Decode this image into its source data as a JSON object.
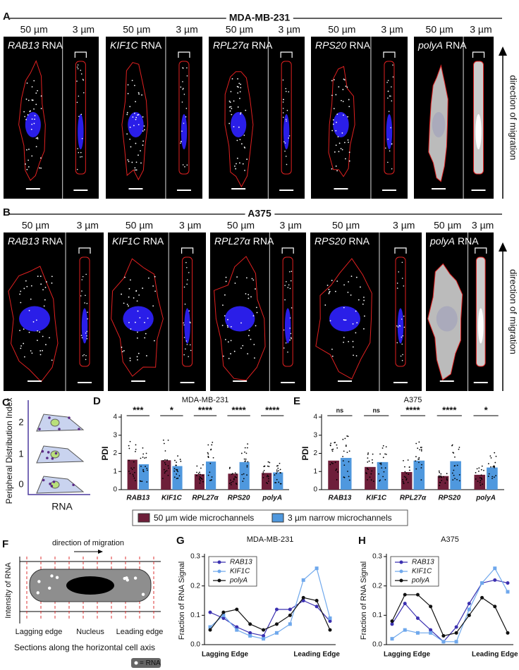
{
  "panel_a": {
    "letter": "A",
    "title": "MDA-MB-231",
    "direction": "direction of migration",
    "cells": [
      {
        "wide": "50 µm",
        "narrow": "3 µm",
        "gene": "RAB13",
        "rna": "RNA"
      },
      {
        "wide": "50 µm",
        "narrow": "3 µm",
        "gene": "KIF1C",
        "rna": "RNA"
      },
      {
        "wide": "50 µm",
        "narrow": "3 µm",
        "gene": "RPL27α",
        "rna": "RNA"
      },
      {
        "wide": "50 µm",
        "narrow": "3 µm",
        "gene": "RPS20",
        "rna": "RNA"
      },
      {
        "wide": "50 µm",
        "narrow": "3 µm",
        "gene": "polyA",
        "rna": "RNA"
      }
    ]
  },
  "panel_b": {
    "letter": "B",
    "title": "A375",
    "direction": "direction of migration",
    "cells": [
      {
        "wide": "50 µm",
        "narrow": "3 µm",
        "gene": "RAB13",
        "rna": "RNA"
      },
      {
        "wide": "50 µm",
        "narrow": "3 µm",
        "gene": "KIF1C",
        "rna": "RNA"
      },
      {
        "wide": "50 µm",
        "narrow": "3 µm",
        "gene": "RPL27α",
        "rna": "RNA"
      },
      {
        "wide": "50 µm",
        "narrow": "3 µm",
        "gene": "RPS20",
        "rna": "RNA"
      },
      {
        "wide": "50 µm",
        "narrow": "3 µm",
        "gene": "polyA",
        "rna": "RNA"
      }
    ]
  },
  "panel_c": {
    "letter": "C",
    "ylabel": "Peripheral Distribution Index",
    "xlabel": "RNA",
    "yticks": [
      0,
      1,
      2
    ]
  },
  "panel_f": {
    "letter": "F",
    "direction": "direction of migration",
    "ylabel": "Intensity of RNA",
    "labels": [
      "Lagging edge",
      "Nucleus",
      "Leading edge"
    ],
    "xlabel": "Sections along the horizontal cell axis",
    "key": "= RNA"
  },
  "chart_data": [
    {
      "type": "bar",
      "letter": "D",
      "title": "MDA-MB-231",
      "ylabel": "PDI",
      "categories": [
        "RAB13",
        "KIF1C",
        "RPL27α",
        "RPS20",
        "polyA"
      ],
      "series": [
        {
          "name": "50 µm wide microchannels",
          "color": "#6e1f3a",
          "values": [
            1.65,
            1.62,
            0.85,
            0.88,
            0.92
          ]
        },
        {
          "name": "3 µm narrow microchannels",
          "color": "#4f98de",
          "values": [
            1.4,
            1.3,
            1.55,
            1.52,
            0.95
          ]
        }
      ],
      "significance": [
        "***",
        "*",
        "****",
        "****",
        "****"
      ],
      "ylim": [
        0,
        4
      ],
      "yticks": [
        0,
        1,
        2,
        3,
        4
      ]
    },
    {
      "type": "bar",
      "letter": "E",
      "title": "A375",
      "ylabel": "PDI",
      "categories": [
        "RAB13",
        "KIF1C",
        "RPL27α",
        "RPS20",
        "polyA"
      ],
      "series": [
        {
          "color": "#6e1f3a",
          "values": [
            1.6,
            1.25,
            0.97,
            0.75,
            0.82
          ]
        },
        {
          "color": "#4f98de",
          "values": [
            1.75,
            1.52,
            1.6,
            1.57,
            1.22
          ]
        }
      ],
      "significance": [
        "ns",
        "ns",
        "****",
        "****",
        "*"
      ],
      "ylim": [
        0,
        4
      ],
      "yticks": [
        0,
        1,
        2,
        3,
        4
      ]
    },
    {
      "type": "line",
      "letter": "G",
      "title": "MDA-MB-231",
      "ylabel": "Fraction of RNA Signal",
      "categories": [
        "Lagging Edge",
        null,
        null,
        null,
        null,
        null,
        null,
        null,
        "Leading Edge",
        null
      ],
      "series": [
        {
          "name": "RAB13",
          "color": "#3b30b0",
          "values": [
            0.11,
            0.09,
            0.06,
            0.04,
            0.03,
            0.12,
            0.12,
            0.15,
            0.13,
            0.08
          ]
        },
        {
          "name": "KIF1C",
          "color": "#6fa8ec",
          "values": [
            0.06,
            0.1,
            0.05,
            0.03,
            0.02,
            0.04,
            0.07,
            0.22,
            0.26,
            0.09
          ]
        },
        {
          "name": "polyA",
          "color": "#111111",
          "values": [
            0.05,
            0.11,
            0.12,
            0.07,
            0.05,
            0.07,
            0.1,
            0.16,
            0.15,
            0.05
          ]
        }
      ],
      "ylim": [
        0,
        0.3
      ],
      "yticks": [
        {
          "value": 0,
          "label": "0.0"
        },
        0.1,
        0.2,
        0.3
      ]
    },
    {
      "type": "line",
      "letter": "H",
      "title": "A375",
      "ylabel": "Fraction of RNA Signal",
      "categories": [
        "Lagging Edge",
        null,
        null,
        null,
        null,
        null,
        null,
        null,
        "Leading Edge",
        null
      ],
      "series": [
        {
          "name": "RAB13",
          "color": "#3b30b0",
          "values": [
            0.07,
            0.14,
            0.09,
            0.05,
            0.01,
            0.06,
            0.14,
            0.21,
            0.22,
            0.21
          ]
        },
        {
          "name": "KIF1C",
          "color": "#6fa8ec",
          "values": [
            0.02,
            0.05,
            0.04,
            0.04,
            0.01,
            0.01,
            0.12,
            0.21,
            0.26,
            0.18
          ]
        },
        {
          "name": "polyA",
          "color": "#111111",
          "values": [
            0.08,
            0.17,
            0.17,
            0.13,
            0.03,
            0.04,
            0.1,
            0.16,
            0.13,
            0.04
          ]
        }
      ],
      "ylim": [
        0,
        0.3
      ],
      "yticks": [
        {
          "value": 0,
          "label": "0.0"
        },
        0.1,
        0.2,
        0.3
      ]
    }
  ]
}
